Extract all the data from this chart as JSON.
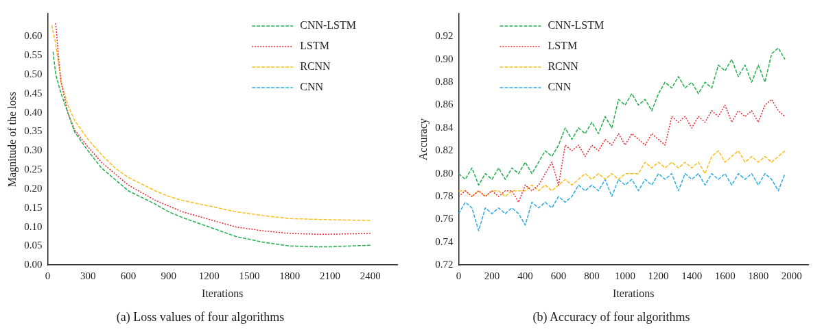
{
  "chart_data": [
    {
      "type": "line",
      "title": "(a) Loss values of four algorithms",
      "xlabel": "Iterations",
      "ylabel": "Magnitude of the loss",
      "xlim": [
        0,
        2600
      ],
      "xticks": [
        0,
        300,
        600,
        900,
        1200,
        1500,
        1800,
        2100,
        2400
      ],
      "ylim": [
        0,
        0.66
      ],
      "yticks": [
        {
          "value": 0,
          "label": "0.00"
        },
        0.05,
        {
          "value": 0.1,
          "label": "0.10"
        },
        0.15,
        {
          "value": 0.2,
          "label": "0.20"
        },
        0.25,
        {
          "value": 0.3,
          "label": "0.30"
        },
        0.35,
        {
          "value": 0.4,
          "label": "0.40"
        },
        0.45,
        {
          "value": 0.5,
          "label": "0.50"
        },
        0.55,
        {
          "value": 0.6,
          "label": "0.60"
        }
      ],
      "legend": "top right",
      "marker": "none",
      "series": [
        {
          "name": "CNN-LSTM",
          "color": "#1fae4b",
          "line_style": "dashed",
          "x": [
            40,
            60,
            100,
            150,
            200,
            300,
            400,
            500,
            600,
            800,
            900,
            1000,
            1200,
            1400,
            1600,
            1800,
            2000,
            2100,
            2400
          ],
          "values": [
            0.56,
            0.5,
            0.45,
            0.4,
            0.35,
            0.3,
            0.255,
            0.225,
            0.195,
            0.16,
            0.14,
            0.125,
            0.1,
            0.075,
            0.06,
            0.05,
            0.048,
            0.048,
            0.052
          ]
        },
        {
          "name": "LSTM",
          "color": "#e8202a",
          "line_style": "dotted",
          "x": [
            60,
            80,
            100,
            150,
            200,
            300,
            400,
            500,
            600,
            800,
            900,
            1000,
            1200,
            1400,
            1600,
            1800,
            2000,
            2100,
            2400
          ],
          "values": [
            0.635,
            0.55,
            0.48,
            0.4,
            0.355,
            0.31,
            0.27,
            0.24,
            0.21,
            0.17,
            0.155,
            0.14,
            0.12,
            0.1,
            0.09,
            0.083,
            0.081,
            0.081,
            0.083
          ]
        },
        {
          "name": "RCNN",
          "color": "#fbbd18",
          "line_style": "dashed",
          "x": [
            30,
            60,
            100,
            150,
            200,
            300,
            400,
            500,
            600,
            800,
            900,
            1000,
            1200,
            1400,
            1600,
            1800,
            2000,
            2100,
            2400
          ],
          "values": [
            0.63,
            0.58,
            0.48,
            0.42,
            0.38,
            0.33,
            0.29,
            0.255,
            0.23,
            0.195,
            0.18,
            0.17,
            0.155,
            0.14,
            0.13,
            0.122,
            0.12,
            0.119,
            0.117
          ]
        },
        {
          "name": "CNN",
          "color": "#29abe2",
          "line_style": "dashed"
        }
      ]
    },
    {
      "type": "line",
      "title": "(b) Accuracy of four algorithms",
      "xlabel": "Iterations",
      "ylabel": "Accuracy",
      "xlim": [
        0,
        2100
      ],
      "xticks": [
        0,
        200,
        400,
        600,
        800,
        1000,
        1200,
        1400,
        1600,
        1800,
        2000
      ],
      "ylim": [
        0.72,
        0.94
      ],
      "yticks": [
        0.72,
        0.74,
        0.76,
        0.78,
        {
          "value": 0.8,
          "label": "0.80"
        },
        0.82,
        0.84,
        0.86,
        0.88,
        {
          "value": 0.9,
          "label": "0.90"
        },
        0.92
      ],
      "legend": "top left",
      "marker": "none",
      "x": [
        0,
        40,
        80,
        120,
        160,
        200,
        240,
        280,
        320,
        360,
        400,
        440,
        480,
        520,
        560,
        600,
        640,
        680,
        720,
        760,
        800,
        840,
        880,
        920,
        960,
        1000,
        1040,
        1080,
        1120,
        1160,
        1200,
        1240,
        1280,
        1320,
        1360,
        1400,
        1440,
        1480,
        1520,
        1560,
        1600,
        1640,
        1680,
        1720,
        1760,
        1800,
        1840,
        1880,
        1920,
        1960
      ],
      "series": [
        {
          "name": "CNN-LSTM",
          "color": "#1fae4b",
          "line_style": "dashed",
          "values": [
            0.8,
            0.795,
            0.805,
            0.79,
            0.8,
            0.795,
            0.805,
            0.795,
            0.805,
            0.8,
            0.81,
            0.8,
            0.81,
            0.82,
            0.815,
            0.825,
            0.84,
            0.83,
            0.84,
            0.835,
            0.845,
            0.835,
            0.85,
            0.84,
            0.865,
            0.86,
            0.87,
            0.86,
            0.865,
            0.855,
            0.87,
            0.88,
            0.875,
            0.885,
            0.875,
            0.88,
            0.87,
            0.88,
            0.875,
            0.895,
            0.89,
            0.9,
            0.885,
            0.895,
            0.88,
            0.895,
            0.88,
            0.905,
            0.91,
            0.9
          ]
        },
        {
          "name": "LSTM",
          "color": "#e8202a",
          "line_style": "dotted",
          "values": [
            0.78,
            0.785,
            0.78,
            0.785,
            0.78,
            0.785,
            0.78,
            0.785,
            0.785,
            0.775,
            0.79,
            0.785,
            0.79,
            0.8,
            0.81,
            0.79,
            0.825,
            0.82,
            0.825,
            0.815,
            0.825,
            0.82,
            0.83,
            0.825,
            0.835,
            0.825,
            0.835,
            0.83,
            0.825,
            0.835,
            0.83,
            0.825,
            0.85,
            0.845,
            0.85,
            0.84,
            0.85,
            0.845,
            0.855,
            0.85,
            0.86,
            0.845,
            0.855,
            0.85,
            0.855,
            0.845,
            0.86,
            0.865,
            0.855,
            0.85
          ]
        },
        {
          "name": "RCNN",
          "color": "#fbbd18",
          "line_style": "dashed",
          "values": [
            0.785,
            0.785,
            0.78,
            0.785,
            0.78,
            0.785,
            0.785,
            0.78,
            0.785,
            0.785,
            0.785,
            0.79,
            0.785,
            0.79,
            0.785,
            0.79,
            0.795,
            0.79,
            0.795,
            0.8,
            0.795,
            0.8,
            0.795,
            0.8,
            0.795,
            0.8,
            0.8,
            0.8,
            0.81,
            0.805,
            0.81,
            0.805,
            0.81,
            0.805,
            0.81,
            0.805,
            0.81,
            0.8,
            0.815,
            0.82,
            0.81,
            0.815,
            0.82,
            0.81,
            0.815,
            0.81,
            0.815,
            0.81,
            0.815,
            0.82
          ]
        },
        {
          "name": "CNN",
          "color": "#29abe2",
          "line_style": "dashed",
          "values": [
            0.765,
            0.775,
            0.77,
            0.75,
            0.77,
            0.765,
            0.77,
            0.765,
            0.77,
            0.765,
            0.755,
            0.775,
            0.77,
            0.775,
            0.77,
            0.78,
            0.775,
            0.78,
            0.79,
            0.785,
            0.79,
            0.785,
            0.795,
            0.78,
            0.795,
            0.79,
            0.795,
            0.785,
            0.795,
            0.79,
            0.8,
            0.795,
            0.8,
            0.785,
            0.8,
            0.795,
            0.8,
            0.79,
            0.8,
            0.795,
            0.8,
            0.79,
            0.8,
            0.795,
            0.8,
            0.79,
            0.8,
            0.795,
            0.785,
            0.8
          ]
        }
      ]
    }
  ]
}
